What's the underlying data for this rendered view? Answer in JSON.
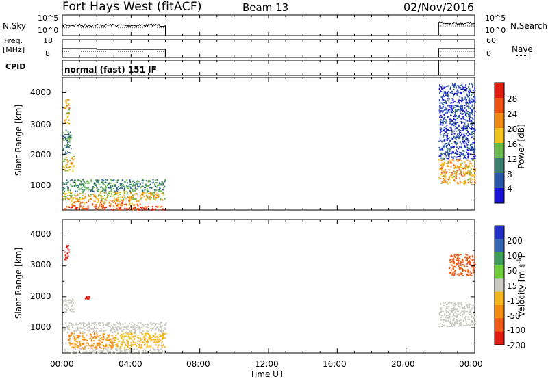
{
  "header": {
    "title": "Fort Hays West (fitACF)",
    "beam": "Beam 13",
    "date": "02/Nov/2016"
  },
  "strips": {
    "nsky": {
      "label": "N.Sky",
      "yticks": [
        "10^5",
        "10^0"
      ]
    },
    "nsearch": {
      "label": "N.Search",
      "yticks": [
        "10^5",
        "10^0"
      ]
    },
    "freq": {
      "label_top": "Freq.",
      "label_bottom": "[MHz]",
      "yticks": [
        "18",
        "8"
      ]
    },
    "nave": {
      "label": "Nave",
      "yticks": [
        "60",
        "0"
      ]
    },
    "cpid": {
      "label": "CPID",
      "mode": "normal (fast) 151 IF"
    }
  },
  "colors": {
    "power": [
      "#1a14d8",
      "#2a55a8",
      "#3a7e6e",
      "#6ab84a",
      "#f2c21c",
      "#f08a14",
      "#ee5012",
      "#e21a10"
    ],
    "velocity": [
      "#2230c8",
      "#3466b4",
      "#3c9a5a",
      "#6ccc3c",
      "#c8c8c0",
      "#f4b41c",
      "#f48c14",
      "#ee5a14",
      "#e41a12"
    ]
  },
  "chart_data": [
    {
      "type": "heatmap",
      "title": "Power",
      "xlabel": "",
      "ylabel": "Slant Range [km]",
      "xlim": [
        0,
        24
      ],
      "ylim": [
        180,
        4500
      ],
      "x_ticks": [],
      "y_ticks": [
        "1000",
        "2000",
        "3000",
        "4000"
      ],
      "colorbar": {
        "label": "Power [dB]",
        "range": [
          0,
          32
        ],
        "ticks": [
          "4",
          "8",
          "12",
          "16",
          "20",
          "24",
          "28"
        ]
      },
      "regions": [
        {
          "t0": 0.0,
          "t1": 6.0,
          "r0": 200,
          "r1": 320,
          "value": 27
        },
        {
          "t0": 0.5,
          "t1": 4.5,
          "r0": 320,
          "r1": 520,
          "value": 23
        },
        {
          "t0": 0.0,
          "t1": 6.0,
          "r0": 520,
          "r1": 800,
          "value": 18
        },
        {
          "t0": 0.0,
          "t1": 6.0,
          "r0": 800,
          "r1": 1200,
          "value": 11
        },
        {
          "t0": 0.0,
          "t1": 0.7,
          "r0": 1450,
          "r1": 1950,
          "value": 18
        },
        {
          "t0": 0.0,
          "t1": 0.5,
          "r0": 2000,
          "r1": 2800,
          "value": 10
        },
        {
          "t0": 0.1,
          "t1": 0.4,
          "r0": 3000,
          "r1": 3800,
          "value": 20
        },
        {
          "t0": 21.9,
          "t1": 24.0,
          "r0": 1050,
          "r1": 1850,
          "value": 20
        },
        {
          "t0": 21.9,
          "t1": 24.0,
          "r0": 1850,
          "r1": 4300,
          "value": 5
        }
      ]
    },
    {
      "type": "heatmap",
      "title": "Velocity",
      "xlabel": "Time UT",
      "ylabel": "Slant Range [km]",
      "xlim": [
        0,
        24
      ],
      "ylim": [
        180,
        4500
      ],
      "x_ticks": [
        "00:00",
        "04:00",
        "08:00",
        "12:00",
        "16:00",
        "20:00",
        "00:00"
      ],
      "y_ticks": [
        "1000",
        "2000",
        "3000",
        "4000"
      ],
      "colorbar": {
        "label": "Velocity [m s^-1]",
        "ticks": [
          "200",
          "100",
          "50",
          "15",
          "-15",
          "-50",
          "-100",
          "-200"
        ]
      },
      "regions": [
        {
          "t0": 0.0,
          "t1": 6.0,
          "r0": 200,
          "r1": 350,
          "value": 0
        },
        {
          "t0": 0.3,
          "t1": 3.0,
          "r0": 350,
          "r1": 850,
          "value": -60
        },
        {
          "t0": 3.0,
          "t1": 6.0,
          "r0": 350,
          "r1": 850,
          "value": -30
        },
        {
          "t0": 0.0,
          "t1": 6.0,
          "r0": 850,
          "r1": 1200,
          "value": 0
        },
        {
          "t0": 0.0,
          "t1": 0.7,
          "r0": 1500,
          "r1": 1950,
          "value": 0
        },
        {
          "t0": 1.3,
          "t1": 1.6,
          "r0": 1950,
          "r1": 2050,
          "value": -250
        },
        {
          "t0": 0.1,
          "t1": 0.4,
          "r0": 3200,
          "r1": 3700,
          "value": -250
        },
        {
          "t0": 21.9,
          "t1": 24.0,
          "r0": 1050,
          "r1": 1850,
          "value": 0
        },
        {
          "t0": 22.5,
          "t1": 24.0,
          "r0": 2700,
          "r1": 3400,
          "value": -150
        }
      ]
    }
  ]
}
